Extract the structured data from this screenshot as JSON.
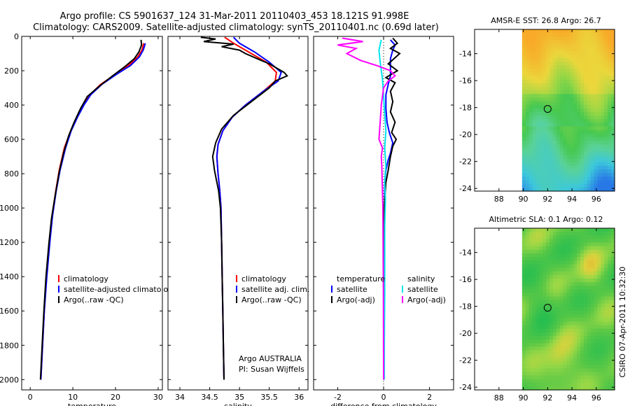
{
  "figure": {
    "title_line1": "Argo profile: CS 5901637_124 31-Mar-2011 20110403_453 18.121S 91.998E",
    "title_line2": "Climatology: CARS2009. Satellite-adjusted climatology: synTS_20110401.nc (0.69d later)",
    "credit": "CSIRO 07-Apr-2011 10:32:30"
  },
  "colors": {
    "climatology": "#ff0000",
    "satellite": "#0000ff",
    "argo": "#000000",
    "sat_diff_s": "#00e5ee",
    "argo_diff_s": "#ff00ff",
    "marker": "#000000"
  },
  "chart_data": [
    {
      "id": "temperature",
      "type": "line",
      "xlabel": "temperature",
      "ylabel": "",
      "xlim": [
        -2,
        31
      ],
      "ylim": [
        2060,
        0
      ],
      "x_ticks": [
        0,
        10,
        20,
        30
      ],
      "y_ticks": [
        0,
        200,
        400,
        600,
        800,
        1000,
        1200,
        1400,
        1600,
        1800,
        2000
      ],
      "legend": [
        "climatology",
        "satellite-adjusted climatology",
        "Argo(..raw -QC)"
      ],
      "series": [
        {
          "name": "climatology",
          "color": "#ff0000",
          "points": [
            [
              26.6,
              40
            ],
            [
              26.2,
              80
            ],
            [
              25.2,
              120
            ],
            [
              23.0,
              170
            ],
            [
              20.0,
              220
            ],
            [
              16.5,
              280
            ],
            [
              14.0,
              340
            ],
            [
              12.5,
              400
            ],
            [
              11.0,
              470
            ],
            [
              9.5,
              550
            ],
            [
              8.0,
              650
            ],
            [
              6.8,
              780
            ],
            [
              6.0,
              900
            ],
            [
              5.1,
              1050
            ],
            [
              4.5,
              1200
            ],
            [
              3.8,
              1400
            ],
            [
              3.3,
              1600
            ],
            [
              2.9,
              1800
            ],
            [
              2.5,
              2000
            ]
          ]
        },
        {
          "name": "satellite-adjusted climatology",
          "color": "#0000ff",
          "points": [
            [
              27.0,
              40
            ],
            [
              26.5,
              80
            ],
            [
              25.6,
              120
            ],
            [
              23.5,
              170
            ],
            [
              20.3,
              220
            ],
            [
              16.8,
              280
            ],
            [
              14.2,
              340
            ],
            [
              12.6,
              400
            ],
            [
              11.1,
              470
            ],
            [
              9.6,
              550
            ],
            [
              8.3,
              650
            ],
            [
              7.0,
              780
            ],
            [
              6.1,
              900
            ],
            [
              5.2,
              1050
            ],
            [
              4.6,
              1200
            ],
            [
              3.9,
              1400
            ],
            [
              3.3,
              1600
            ],
            [
              2.9,
              1800
            ],
            [
              2.5,
              2000
            ]
          ]
        },
        {
          "name": "Argo(..raw -QC)",
          "color": "#000000",
          "points": [
            [
              26.0,
              20
            ],
            [
              26.1,
              50
            ],
            [
              25.5,
              90
            ],
            [
              24.4,
              130
            ],
            [
              22.0,
              180
            ],
            [
              19.3,
              230
            ],
            [
              16.2,
              290
            ],
            [
              13.4,
              350
            ],
            [
              11.8,
              420
            ],
            [
              10.3,
              500
            ],
            [
              9.0,
              580
            ],
            [
              7.8,
              680
            ],
            [
              6.8,
              790
            ],
            [
              5.9,
              920
            ],
            [
              5.0,
              1060
            ],
            [
              4.4,
              1200
            ],
            [
              3.7,
              1400
            ],
            [
              3.2,
              1600
            ],
            [
              2.8,
              1800
            ],
            [
              2.4,
              2000
            ]
          ]
        }
      ]
    },
    {
      "id": "salinity",
      "type": "line",
      "xlabel": "salinity",
      "ylabel": "",
      "xlim": [
        33.8,
        36.15
      ],
      "ylim": [
        2060,
        0
      ],
      "x_ticks": [
        34,
        34.5,
        35,
        35.5,
        36
      ],
      "y_ticks": [
        0,
        200,
        400,
        600,
        800,
        1000,
        1200,
        1400,
        1600,
        1800,
        2000
      ],
      "legend": [
        "climatology",
        "satellite adj. clim.",
        "Argo(..raw -QC)"
      ],
      "annotation": [
        "Argo AUSTRALIA",
        "PI: Susan Wijffels"
      ],
      "series": [
        {
          "name": "climatology",
          "color": "#ff0000",
          "points": [
            [
              34.75,
              5
            ],
            [
              34.9,
              40
            ],
            [
              35.15,
              90
            ],
            [
              35.45,
              150
            ],
            [
              35.62,
              210
            ],
            [
              35.6,
              260
            ],
            [
              35.4,
              320
            ],
            [
              35.1,
              400
            ],
            [
              34.88,
              470
            ],
            [
              34.72,
              550
            ],
            [
              34.64,
              630
            ],
            [
              34.62,
              700
            ],
            [
              34.64,
              800
            ],
            [
              34.67,
              900
            ],
            [
              34.69,
              1000
            ],
            [
              34.7,
              1200
            ],
            [
              34.71,
              1400
            ],
            [
              34.72,
              1600
            ],
            [
              34.73,
              1800
            ],
            [
              34.74,
              2000
            ]
          ]
        },
        {
          "name": "satellite adj. clim.",
          "color": "#0000ff",
          "points": [
            [
              34.9,
              5
            ],
            [
              35.0,
              40
            ],
            [
              35.25,
              90
            ],
            [
              35.5,
              150
            ],
            [
              35.7,
              210
            ],
            [
              35.65,
              260
            ],
            [
              35.4,
              320
            ],
            [
              35.1,
              400
            ],
            [
              34.88,
              470
            ],
            [
              34.72,
              550
            ],
            [
              34.64,
              630
            ],
            [
              34.62,
              700
            ],
            [
              34.64,
              800
            ],
            [
              34.67,
              900
            ],
            [
              34.69,
              1000
            ],
            [
              34.7,
              1200
            ],
            [
              34.71,
              1400
            ],
            [
              34.72,
              1600
            ],
            [
              34.73,
              1800
            ],
            [
              34.74,
              2000
            ]
          ]
        },
        {
          "name": "Argo(..raw -QC)",
          "color": "#000000",
          "points": [
            [
              34.35,
              5
            ],
            [
              34.6,
              15
            ],
            [
              34.4,
              30
            ],
            [
              34.9,
              45
            ],
            [
              34.7,
              60
            ],
            [
              35.0,
              80
            ],
            [
              35.1,
              100
            ],
            [
              35.3,
              130
            ],
            [
              35.5,
              160
            ],
            [
              35.75,
              210
            ],
            [
              35.8,
              230
            ],
            [
              35.6,
              260
            ],
            [
              35.5,
              300
            ],
            [
              35.2,
              380
            ],
            [
              34.9,
              460
            ],
            [
              34.7,
              540
            ],
            [
              34.6,
              620
            ],
            [
              34.55,
              700
            ],
            [
              34.58,
              780
            ],
            [
              34.62,
              850
            ],
            [
              34.65,
              900
            ],
            [
              34.68,
              1000
            ],
            [
              34.7,
              1200
            ],
            [
              34.71,
              1400
            ],
            [
              34.72,
              1600
            ],
            [
              34.73,
              1800
            ],
            [
              34.74,
              2000
            ]
          ]
        }
      ]
    },
    {
      "id": "difference",
      "type": "line",
      "xlabel": "difference from climatology",
      "ylabel": "",
      "xlim": [
        -3.05,
        3.05
      ],
      "ylim": [
        2060,
        0
      ],
      "x_ticks": [
        -2,
        0,
        2
      ],
      "y_ticks": [
        0,
        200,
        400,
        600,
        800,
        1000,
        1200,
        1400,
        1600,
        1800,
        2000
      ],
      "legend_left_title": "temperature",
      "legend_left": [
        "satellite",
        "Argo(-adj)"
      ],
      "legend_right_title": "salinity",
      "legend_right": [
        "satellite",
        "Argo(-adj)"
      ],
      "series": [
        {
          "name": "temperature satellite",
          "color": "#0000ff",
          "points": [
            [
              0.3,
              20
            ],
            [
              0.5,
              50
            ],
            [
              0.4,
              80
            ],
            [
              0.3,
              130
            ],
            [
              0.3,
              180
            ],
            [
              0.3,
              230
            ],
            [
              0.2,
              280
            ],
            [
              0.1,
              340
            ],
            [
              0.1,
              420
            ],
            [
              0.15,
              500
            ],
            [
              0.25,
              560
            ],
            [
              0.4,
              620
            ],
            [
              0.3,
              680
            ],
            [
              0.2,
              720
            ],
            [
              0.1,
              780
            ],
            [
              0.05,
              850
            ],
            [
              0.05,
              950
            ],
            [
              0.0,
              1100
            ],
            [
              0.0,
              1500
            ],
            [
              0.0,
              2000
            ]
          ]
        },
        {
          "name": "temperature Argo(-adj)",
          "color": "#000000",
          "points": [
            [
              0.4,
              10
            ],
            [
              0.6,
              40
            ],
            [
              0.3,
              70
            ],
            [
              0.7,
              100
            ],
            [
              0.2,
              160
            ],
            [
              0.6,
              200
            ],
            [
              0.1,
              240
            ],
            [
              0.5,
              270
            ],
            [
              0.3,
              320
            ],
            [
              0.4,
              380
            ],
            [
              0.3,
              440
            ],
            [
              0.5,
              500
            ],
            [
              0.35,
              560
            ],
            [
              0.55,
              600
            ],
            [
              0.4,
              640
            ],
            [
              0.3,
              700
            ],
            [
              0.2,
              780
            ],
            [
              0.1,
              850
            ],
            [
              0.05,
              950
            ],
            [
              0.0,
              1100
            ],
            [
              0.0,
              1500
            ],
            [
              0.0,
              2000
            ]
          ]
        },
        {
          "name": "salinity satellite",
          "color": "#00e5ee",
          "points": [
            [
              -0.1,
              20
            ],
            [
              -0.2,
              80
            ],
            [
              -0.15,
              150
            ],
            [
              -0.05,
              250
            ],
            [
              0.0,
              350
            ],
            [
              0.05,
              450
            ],
            [
              0.1,
              550
            ],
            [
              0.05,
              650
            ],
            [
              0.1,
              750
            ],
            [
              0.05,
              850
            ],
            [
              0.08,
              950
            ],
            [
              0.05,
              1100
            ],
            [
              0.05,
              1500
            ],
            [
              0.03,
              1800
            ],
            [
              0.03,
              2000
            ]
          ]
        },
        {
          "name": "salinity Argo(-adj)",
          "color": "#ff00ff",
          "points": [
            [
              -1.8,
              10
            ],
            [
              -0.9,
              30
            ],
            [
              -2.0,
              50
            ],
            [
              -1.2,
              70
            ],
            [
              -1.6,
              100
            ],
            [
              -1.0,
              140
            ],
            [
              -0.3,
              170
            ],
            [
              0.3,
              200
            ],
            [
              0.5,
              230
            ],
            [
              0.2,
              260
            ],
            [
              0.0,
              300
            ],
            [
              -0.1,
              400
            ],
            [
              -0.15,
              500
            ],
            [
              -0.2,
              600
            ],
            [
              -0.05,
              650
            ],
            [
              -0.1,
              700
            ],
            [
              -0.08,
              750
            ],
            [
              -0.06,
              850
            ],
            [
              -0.03,
              1000
            ],
            [
              -0.02,
              1200
            ],
            [
              -0.01,
              1500
            ],
            [
              0.0,
              2000
            ]
          ]
        }
      ]
    },
    {
      "id": "sst_map",
      "type": "heatmap",
      "title": "AMSR-E SST: 26.8 Argo: 26.7",
      "xlim": [
        86,
        97.5
      ],
      "ylim": [
        -24.2,
        -12.2
      ],
      "x_ticks": [
        88,
        90,
        92,
        94,
        96
      ],
      "x_tick_labels": [
        "88",
        "90",
        "92",
        "94",
        "96"
      ],
      "y_ticks": [
        -14,
        -16,
        -18,
        -20,
        -22,
        -24
      ],
      "y_tick_labels": [
        "-14",
        "-16",
        "-18",
        "-20",
        "-22",
        "-24"
      ],
      "data_lon_min": 89.9,
      "argo_marker": [
        92,
        -18.1
      ]
    },
    {
      "id": "sla_map",
      "type": "heatmap",
      "title": "Altimetric SLA: 0.1 Argo: 0.12",
      "xlim": [
        86,
        97.5
      ],
      "ylim": [
        -24.2,
        -12.2
      ],
      "x_ticks": [
        88,
        90,
        92,
        94,
        96
      ],
      "x_tick_labels": [
        "88",
        "90",
        "92",
        "94",
        "96"
      ],
      "y_ticks": [
        -14,
        -16,
        -18,
        -20,
        -22,
        -24
      ],
      "y_tick_labels": [
        "-14",
        "-16",
        "-18",
        "-20",
        "-22",
        "-24"
      ],
      "data_lon_min": 89.9,
      "argo_marker": [
        92,
        -18.1
      ]
    }
  ]
}
